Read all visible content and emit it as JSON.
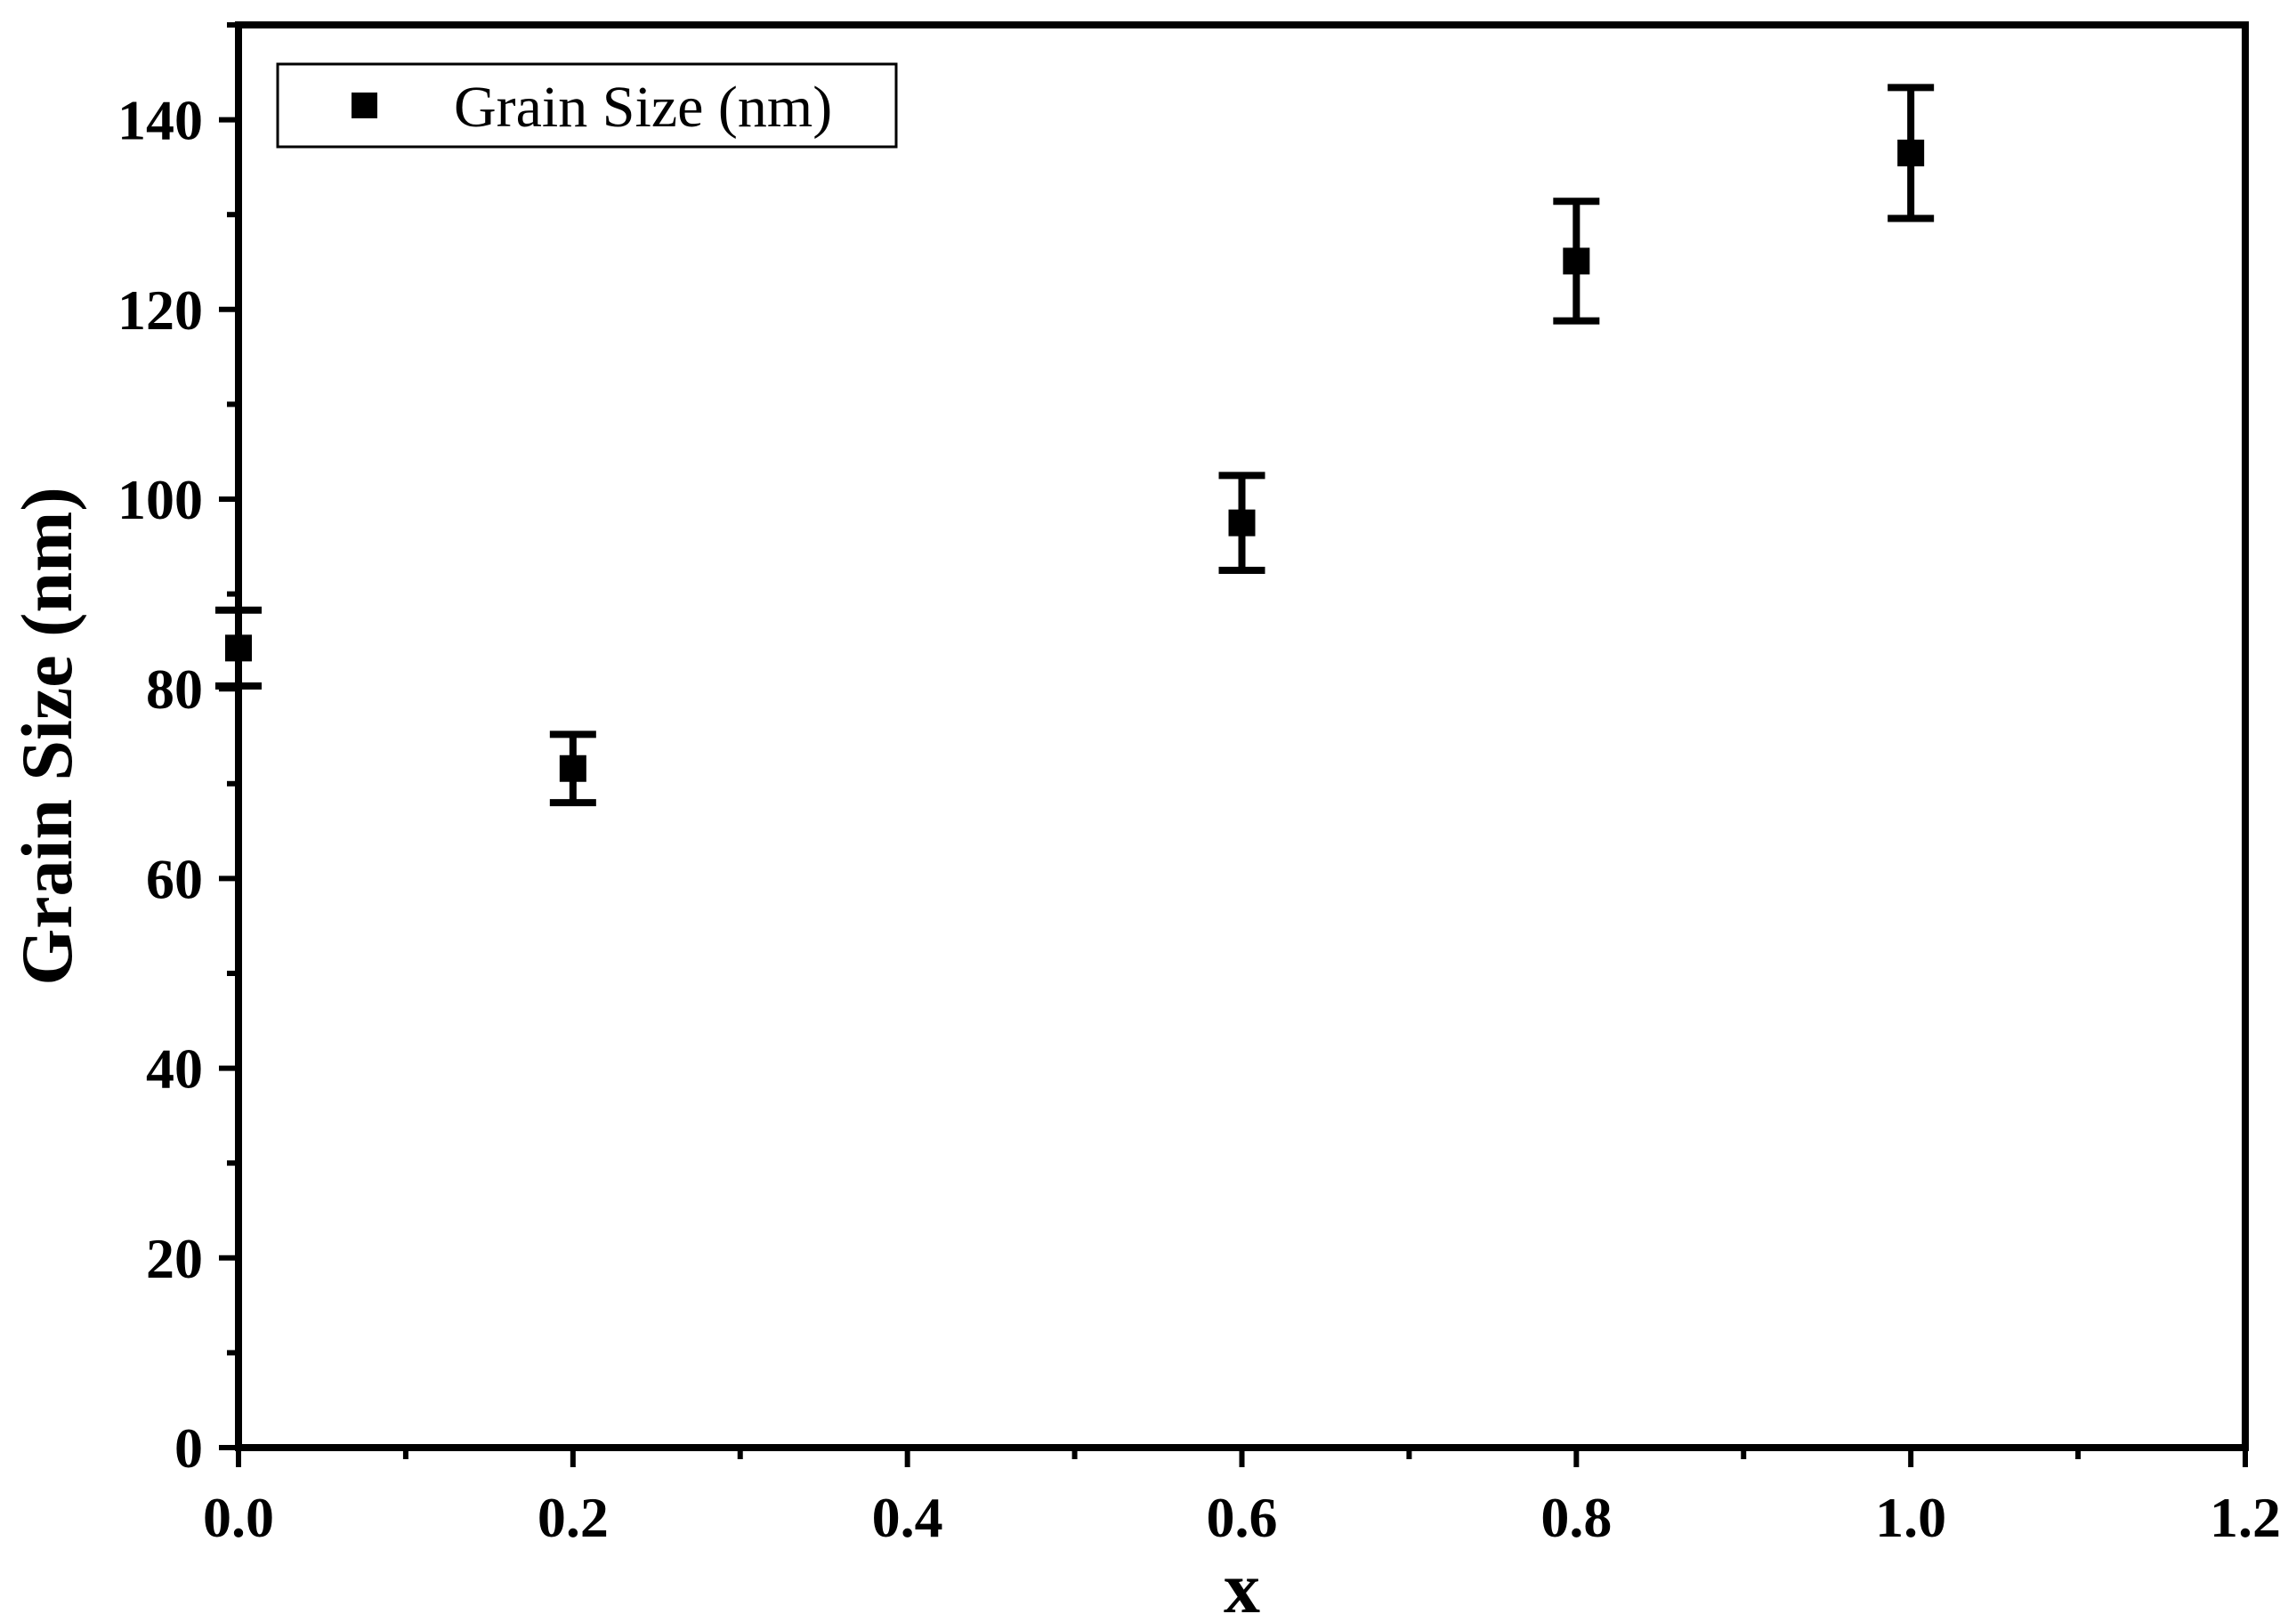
{
  "chart_data": {
    "type": "scatter",
    "xlabel": "x",
    "ylabel": "Grain Size (nm)",
    "xlim": [
      0.0,
      1.2
    ],
    "ylim": [
      0,
      150
    ],
    "x_ticks": [
      "0.0",
      "0.2",
      "0.4",
      "0.6",
      "0.8",
      "1.0",
      "1.2"
    ],
    "y_ticks": [
      "0",
      "20",
      "40",
      "60",
      "80",
      "100",
      "120",
      "140"
    ],
    "legend_position": "top-left",
    "grid": false,
    "series": [
      {
        "name": "Grain Size (nm)",
        "marker": "square",
        "color": "#000000",
        "points": [
          {
            "x": 0.0,
            "y": 84.3,
            "err": 4.0
          },
          {
            "x": 0.2,
            "y": 71.6,
            "err": 3.6
          },
          {
            "x": 0.6,
            "y": 97.5,
            "err": 5.0
          },
          {
            "x": 0.8,
            "y": 125.1,
            "err": 6.3
          },
          {
            "x": 1.0,
            "y": 136.5,
            "err": 6.9
          }
        ]
      }
    ]
  }
}
